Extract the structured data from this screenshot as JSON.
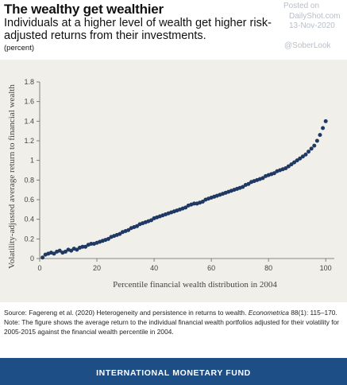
{
  "header": {
    "title": "The wealthy get wealthier",
    "subtitle": "Individuals at a higher level of wealth get higher risk-adjusted returns from their investments.",
    "unit": "(percent)"
  },
  "watermark": {
    "posted_on": "Posted on",
    "site": "DailyShot.com",
    "date": "13-Nov-2020",
    "handle": "@SoberLook"
  },
  "source": {
    "line1_prefix": "Source: Fagereng et al. (2020) Heterogeneity and persistence in returns to wealth. ",
    "line1_journal": "Econometrica",
    "line1_suffix": " 88(1): 115–170.",
    "note": "Note: The figure shows the average return to the individual financial wealth portfolios adjusted for their volatility for 2005-2015 against the financial wealth percentile in 2004."
  },
  "footer": {
    "label": "INTERNATIONAL MONETARY FUND"
  },
  "colors": {
    "marker": "#1f3864",
    "panel": "#f1efe9",
    "footer": "#1d4f86"
  },
  "chart_data": {
    "type": "scatter",
    "xlabel": "Percentile financial wealth distribution in 2004",
    "ylabel": "Volatility-adjusted average return to financial wealth",
    "xlim": [
      0,
      103
    ],
    "ylim": [
      0,
      1.8
    ],
    "xticks": [
      0,
      20,
      40,
      60,
      80,
      100
    ],
    "yticks": [
      0,
      0.2,
      0.4,
      0.6,
      0.8,
      1,
      1.2,
      1.4,
      1.6,
      1.8
    ],
    "xtick_labels": [
      "0",
      "20",
      "40",
      "60",
      "80",
      "100"
    ],
    "ytick_labels": [
      "0",
      "0.2",
      "0.4",
      "0.6",
      "0.8",
      "1",
      "1.2",
      "1.4",
      "1.6",
      "1.8"
    ],
    "grid": false,
    "x": [
      1,
      2,
      3,
      4,
      5,
      6,
      7,
      8,
      9,
      10,
      11,
      12,
      13,
      14,
      15,
      16,
      17,
      18,
      19,
      20,
      21,
      22,
      23,
      24,
      25,
      26,
      27,
      28,
      29,
      30,
      31,
      32,
      33,
      34,
      35,
      36,
      37,
      38,
      39,
      40,
      41,
      42,
      43,
      44,
      45,
      46,
      47,
      48,
      49,
      50,
      51,
      52,
      53,
      54,
      55,
      56,
      57,
      58,
      59,
      60,
      61,
      62,
      63,
      64,
      65,
      66,
      67,
      68,
      69,
      70,
      71,
      72,
      73,
      74,
      75,
      76,
      77,
      78,
      79,
      80,
      81,
      82,
      83,
      84,
      85,
      86,
      87,
      88,
      89,
      90,
      91,
      92,
      93,
      94,
      95,
      96,
      97,
      98,
      99,
      100
    ],
    "y": [
      0.01,
      0.04,
      0.05,
      0.06,
      0.05,
      0.07,
      0.08,
      0.06,
      0.07,
      0.09,
      0.08,
      0.1,
      0.09,
      0.11,
      0.12,
      0.12,
      0.14,
      0.15,
      0.15,
      0.16,
      0.17,
      0.18,
      0.19,
      0.2,
      0.22,
      0.23,
      0.24,
      0.25,
      0.27,
      0.28,
      0.29,
      0.31,
      0.32,
      0.33,
      0.35,
      0.36,
      0.37,
      0.38,
      0.39,
      0.41,
      0.42,
      0.43,
      0.44,
      0.45,
      0.46,
      0.47,
      0.48,
      0.49,
      0.5,
      0.51,
      0.52,
      0.54,
      0.55,
      0.56,
      0.56,
      0.57,
      0.58,
      0.6,
      0.61,
      0.62,
      0.63,
      0.64,
      0.65,
      0.66,
      0.67,
      0.68,
      0.69,
      0.7,
      0.71,
      0.72,
      0.73,
      0.75,
      0.76,
      0.78,
      0.79,
      0.8,
      0.81,
      0.82,
      0.84,
      0.85,
      0.86,
      0.87,
      0.89,
      0.9,
      0.91,
      0.92,
      0.94,
      0.96,
      0.98,
      1.0,
      1.02,
      1.04,
      1.06,
      1.09,
      1.12,
      1.15,
      1.2,
      1.26,
      1.33,
      1.4
    ]
  }
}
